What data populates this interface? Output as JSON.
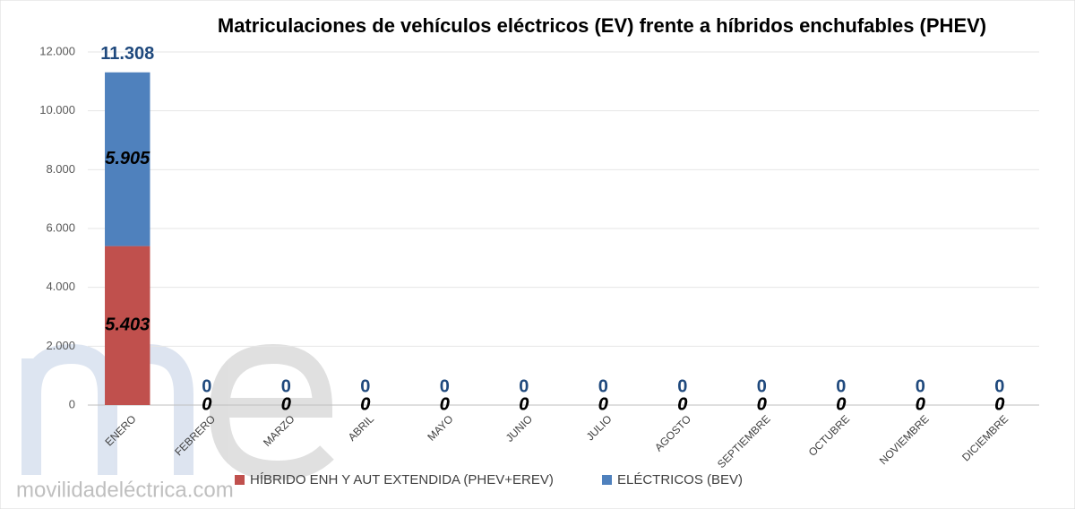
{
  "watermark": "movilidadeléctrica.com",
  "chart_data": {
    "type": "stacked-bar",
    "title": "Matriculaciones de vehículos eléctricos (EV) frente a híbridos enchufables (PHEV)",
    "categories": [
      "ENERO",
      "FEBRERO",
      "MARZO",
      "ABRIL",
      "MAYO",
      "JUNIO",
      "JULIO",
      "AGOSTO",
      "SEPTIEMBRE",
      "OCTUBRE",
      "NOVIEMBRE",
      "DICIEMBRE"
    ],
    "series": [
      {
        "name": "HÍBRIDO ENH Y AUT EXTENDIDA (PHEV+EREV)",
        "color": "#c0504d",
        "values": [
          5403,
          0,
          0,
          0,
          0,
          0,
          0,
          0,
          0,
          0,
          0,
          0
        ],
        "value_labels": [
          "5.403",
          "0",
          "0",
          "0",
          "0",
          "0",
          "0",
          "0",
          "0",
          "0",
          "0",
          "0"
        ]
      },
      {
        "name": "ELÉCTRICOS (BEV)",
        "color": "#4f81bd",
        "values": [
          5905,
          0,
          0,
          0,
          0,
          0,
          0,
          0,
          0,
          0,
          0,
          0
        ],
        "value_labels": [
          "5.905",
          "0",
          "0",
          "0",
          "0",
          "0",
          "0",
          "0",
          "0",
          "0",
          "0",
          "0"
        ]
      }
    ],
    "totals": {
      "color": "#1f497d",
      "values": [
        11308,
        0,
        0,
        0,
        0,
        0,
        0,
        0,
        0,
        0,
        0,
        0
      ],
      "value_labels": [
        "11.308",
        "0",
        "0",
        "0",
        "0",
        "0",
        "0",
        "0",
        "0",
        "0",
        "0",
        "0"
      ]
    },
    "ylim": [
      0,
      12000
    ],
    "yticks": [
      0,
      {
        "value": 2000,
        "label": "2.000"
      },
      {
        "value": 4000,
        "label": "4.000"
      },
      {
        "value": 6000,
        "label": "6.000"
      },
      {
        "value": 8000,
        "label": "8.000"
      },
      {
        "value": 10000,
        "label": "10.000"
      },
      {
        "value": 12000,
        "label": "12.000"
      }
    ],
    "grid": true,
    "legend": "bottom"
  }
}
